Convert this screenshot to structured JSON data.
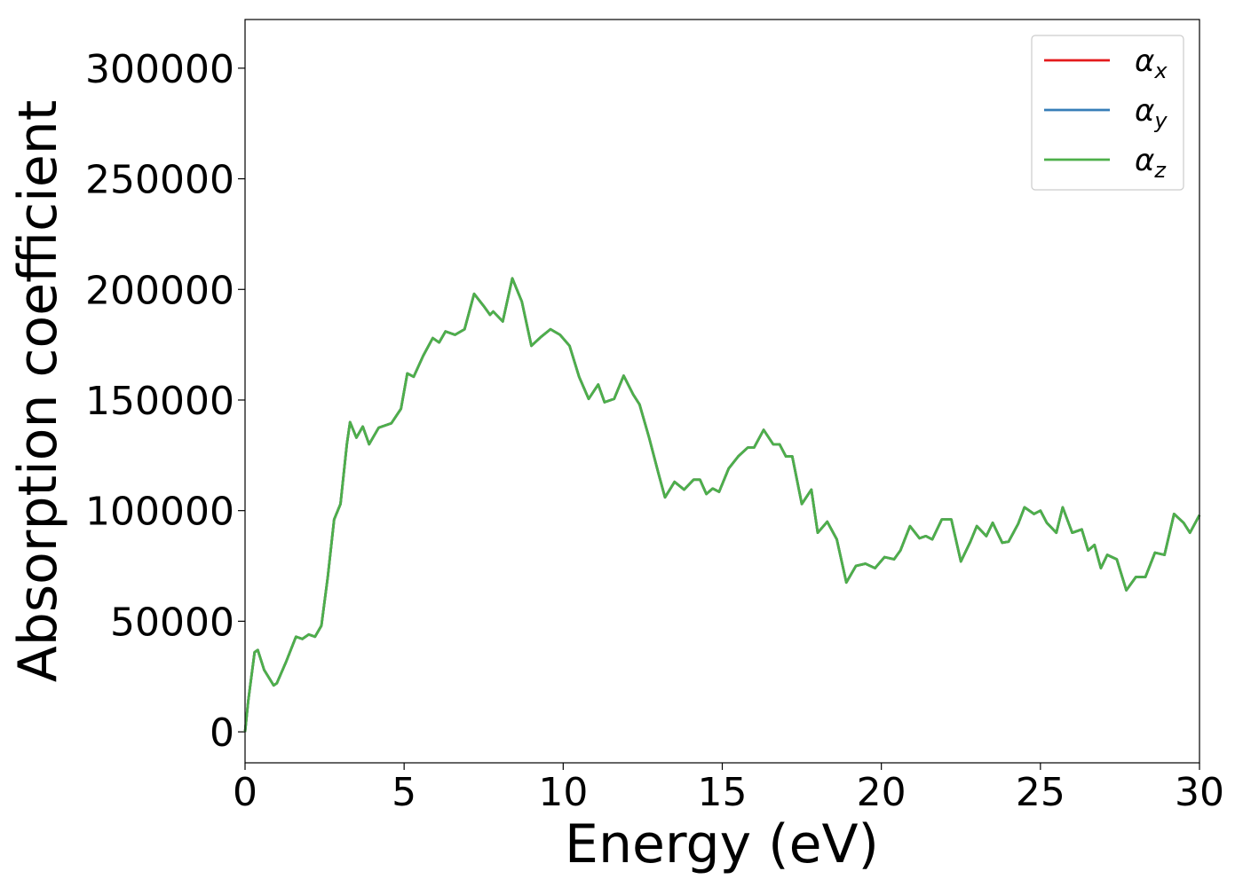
{
  "chart_data": {
    "type": "line",
    "xlabel": "Energy (eV)",
    "ylabel": "Absorption coefficient",
    "x": [
      0,
      0.1,
      0.3,
      0.4,
      0.6,
      0.9,
      1.0,
      1.3,
      1.6,
      1.8,
      2.0,
      2.2,
      2.4,
      2.6,
      2.8,
      3.0,
      3.2,
      3.3,
      3.5,
      3.7,
      3.9,
      4.2,
      4.6,
      4.9,
      5.1,
      5.3,
      5.6,
      5.9,
      6.1,
      6.3,
      6.6,
      6.9,
      7.2,
      7.5,
      7.7,
      7.8,
      8.1,
      8.4,
      8.7,
      9.0,
      9.3,
      9.6,
      9.9,
      10.2,
      10.5,
      10.8,
      11.1,
      11.3,
      11.6,
      11.9,
      12.2,
      12.4,
      12.7,
      13.0,
      13.2,
      13.5,
      13.8,
      14.1,
      14.3,
      14.5,
      14.7,
      14.9,
      15.2,
      15.5,
      15.8,
      16.0,
      16.3,
      16.6,
      16.8,
      17.0,
      17.2,
      17.5,
      17.8,
      18.0,
      18.3,
      18.6,
      18.9,
      19.2,
      19.5,
      19.8,
      20.1,
      20.4,
      20.6,
      20.9,
      21.2,
      21.4,
      21.6,
      21.9,
      22.2,
      22.5,
      22.8,
      23.0,
      23.3,
      23.5,
      23.8,
      24.0,
      24.3,
      24.5,
      24.8,
      25.0,
      25.2,
      25.5,
      25.7,
      26.0,
      26.3,
      26.5,
      26.7,
      26.9,
      27.1,
      27.4,
      27.7,
      28.0,
      28.3,
      28.6,
      28.9,
      29.2,
      29.5,
      29.7,
      30.0
    ],
    "series": [
      {
        "name": "αx",
        "color": "#e41a1c",
        "values": [
          0,
          14000,
          36000,
          37000,
          28000,
          21000,
          22000,
          32000,
          43000,
          42000,
          44000,
          43000,
          48000,
          70000,
          96000,
          103000,
          130000,
          140000,
          133000,
          138000,
          130000,
          137500,
          139500,
          146000,
          162000,
          160500,
          170000,
          178000,
          176000,
          181000,
          179500,
          182000,
          198000,
          192500,
          188500,
          190000,
          185500,
          205000,
          194500,
          174500,
          178500,
          182000,
          179500,
          174500,
          160500,
          150500,
          157000,
          149000,
          150500,
          161000,
          152500,
          148000,
          133000,
          116500,
          106000,
          113000,
          109500,
          114000,
          114000,
          107500,
          110000,
          108500,
          119000,
          124500,
          128500,
          128500,
          136500,
          130000,
          130000,
          124500,
          124500,
          103000,
          109500,
          90000,
          95000,
          87000,
          67500,
          75000,
          76000,
          74000,
          79000,
          78000,
          82000,
          93000,
          87500,
          88500,
          87000,
          96000,
          96000,
          77000,
          86000,
          93000,
          88500,
          94500,
          85500,
          86000,
          94000,
          101500,
          98500,
          100000,
          94500,
          90000,
          101500,
          90000,
          91500,
          82000,
          84500,
          74000,
          80000,
          78000,
          64000,
          70000,
          70000,
          81000,
          80000,
          98500,
          94500,
          90000,
          98000
        ]
      },
      {
        "name": "αy",
        "color": "#377eb8",
        "values": [
          0,
          14000,
          36000,
          37000,
          28000,
          21000,
          22000,
          32000,
          43000,
          42000,
          44000,
          43000,
          48000,
          70000,
          96000,
          103000,
          130000,
          140000,
          133000,
          138000,
          130000,
          137500,
          139500,
          146000,
          162000,
          160500,
          170000,
          178000,
          176000,
          181000,
          179500,
          182000,
          198000,
          192500,
          188500,
          190000,
          185500,
          205000,
          194500,
          174500,
          178500,
          182000,
          179500,
          174500,
          160500,
          150500,
          157000,
          149000,
          150500,
          161000,
          152500,
          148000,
          133000,
          116500,
          106000,
          113000,
          109500,
          114000,
          114000,
          107500,
          110000,
          108500,
          119000,
          124500,
          128500,
          128500,
          136500,
          130000,
          130000,
          124500,
          124500,
          103000,
          109500,
          90000,
          95000,
          87000,
          67500,
          75000,
          76000,
          74000,
          79000,
          78000,
          82000,
          93000,
          87500,
          88500,
          87000,
          96000,
          96000,
          77000,
          86000,
          93000,
          88500,
          94500,
          85500,
          86000,
          94000,
          101500,
          98500,
          100000,
          94500,
          90000,
          101500,
          90000,
          91500,
          82000,
          84500,
          74000,
          80000,
          78000,
          64000,
          70000,
          70000,
          81000,
          80000,
          98500,
          94500,
          90000,
          98000
        ]
      },
      {
        "name": "αz",
        "color": "#4daf4a",
        "values": [
          0,
          14000,
          36000,
          37000,
          28000,
          21000,
          22000,
          32000,
          43000,
          42000,
          44000,
          43000,
          48000,
          70000,
          96000,
          103000,
          130000,
          140000,
          133000,
          138000,
          130000,
          137500,
          139500,
          146000,
          162000,
          160500,
          170000,
          178000,
          176000,
          181000,
          179500,
          182000,
          198000,
          192500,
          188500,
          190000,
          185500,
          205000,
          194500,
          174500,
          178500,
          182000,
          179500,
          174500,
          160500,
          150500,
          157000,
          149000,
          150500,
          161000,
          152500,
          148000,
          133000,
          116500,
          106000,
          113000,
          109500,
          114000,
          114000,
          107500,
          110000,
          108500,
          119000,
          124500,
          128500,
          128500,
          136500,
          130000,
          130000,
          124500,
          124500,
          103000,
          109500,
          90000,
          95000,
          87000,
          67500,
          75000,
          76000,
          74000,
          79000,
          78000,
          82000,
          93000,
          87500,
          88500,
          87000,
          96000,
          96000,
          77000,
          86000,
          93000,
          88500,
          94500,
          85500,
          86000,
          94000,
          101500,
          98500,
          100000,
          94500,
          90000,
          101500,
          90000,
          91500,
          82000,
          84500,
          74000,
          80000,
          78000,
          64000,
          70000,
          70000,
          81000,
          80000,
          98500,
          94500,
          90000,
          98000
        ]
      }
    ],
    "xlim": [
      0,
      30
    ],
    "xticks": [
      0,
      5,
      10,
      15,
      20,
      25,
      30
    ],
    "ylim": [
      -14000,
      322000
    ],
    "yticks": [
      0,
      50000,
      100000,
      150000,
      200000,
      250000,
      300000
    ],
    "grid": false,
    "legend": "upper right"
  }
}
